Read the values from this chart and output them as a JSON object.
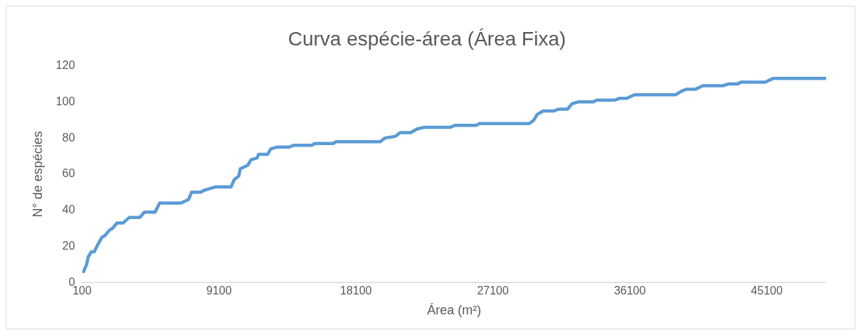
{
  "chart_data": {
    "type": "line",
    "title": "Curva espécie-área (Área Fixa)",
    "xlabel": "Área (m²)",
    "ylabel": "N° de espécies",
    "x": [
      200,
      400,
      500,
      700,
      900,
      1200,
      1400,
      1600,
      1900,
      2100,
      2400,
      2800,
      3200,
      3900,
      4200,
      4900,
      5200,
      6600,
      7100,
      7300,
      7900,
      8100,
      8500,
      8900,
      9900,
      10100,
      10400,
      10500,
      11000,
      11200,
      11600,
      11700,
      12300,
      12500,
      12900,
      13700,
      14000,
      15200,
      15400,
      16600,
      16800,
      19700,
      20000,
      20700,
      21000,
      21700,
      22100,
      22600,
      24300,
      24600,
      26000,
      26200,
      29500,
      29800,
      30000,
      30400,
      31100,
      31400,
      32000,
      32300,
      32700,
      33700,
      33900,
      35100,
      35400,
      35900,
      36400,
      39100,
      39500,
      39800,
      40400,
      40900,
      42200,
      42600,
      43200,
      43400,
      45000,
      45500,
      49000
    ],
    "series": [
      {
        "color": "#5b9bd5",
        "values": [
          6,
          10,
          14,
          17,
          17,
          22,
          25,
          26,
          29,
          30,
          33,
          33,
          36,
          36,
          39,
          39,
          44,
          44,
          46,
          50,
          50,
          51,
          52,
          53,
          53,
          57,
          59,
          63,
          65,
          68,
          69,
          71,
          71,
          74,
          75,
          75,
          76,
          76,
          77,
          77,
          78,
          78,
          80,
          81,
          83,
          83,
          85,
          86,
          86,
          87,
          87,
          88,
          88,
          90,
          93,
          95,
          95,
          96,
          96,
          99,
          100,
          100,
          101,
          101,
          102,
          102,
          104,
          104,
          106,
          107,
          107,
          109,
          109,
          110,
          110,
          111,
          111,
          113,
          113
        ]
      }
    ],
    "xlim": [
      100,
      49000
    ],
    "xticks": [
      100,
      9100,
      18100,
      27100,
      36100,
      45100
    ],
    "ylim": [
      0,
      120
    ],
    "yticks": [
      0,
      20,
      40,
      60,
      80,
      100,
      120
    ],
    "grid": false,
    "legend": false,
    "marker": "none",
    "line_style": "solid"
  }
}
